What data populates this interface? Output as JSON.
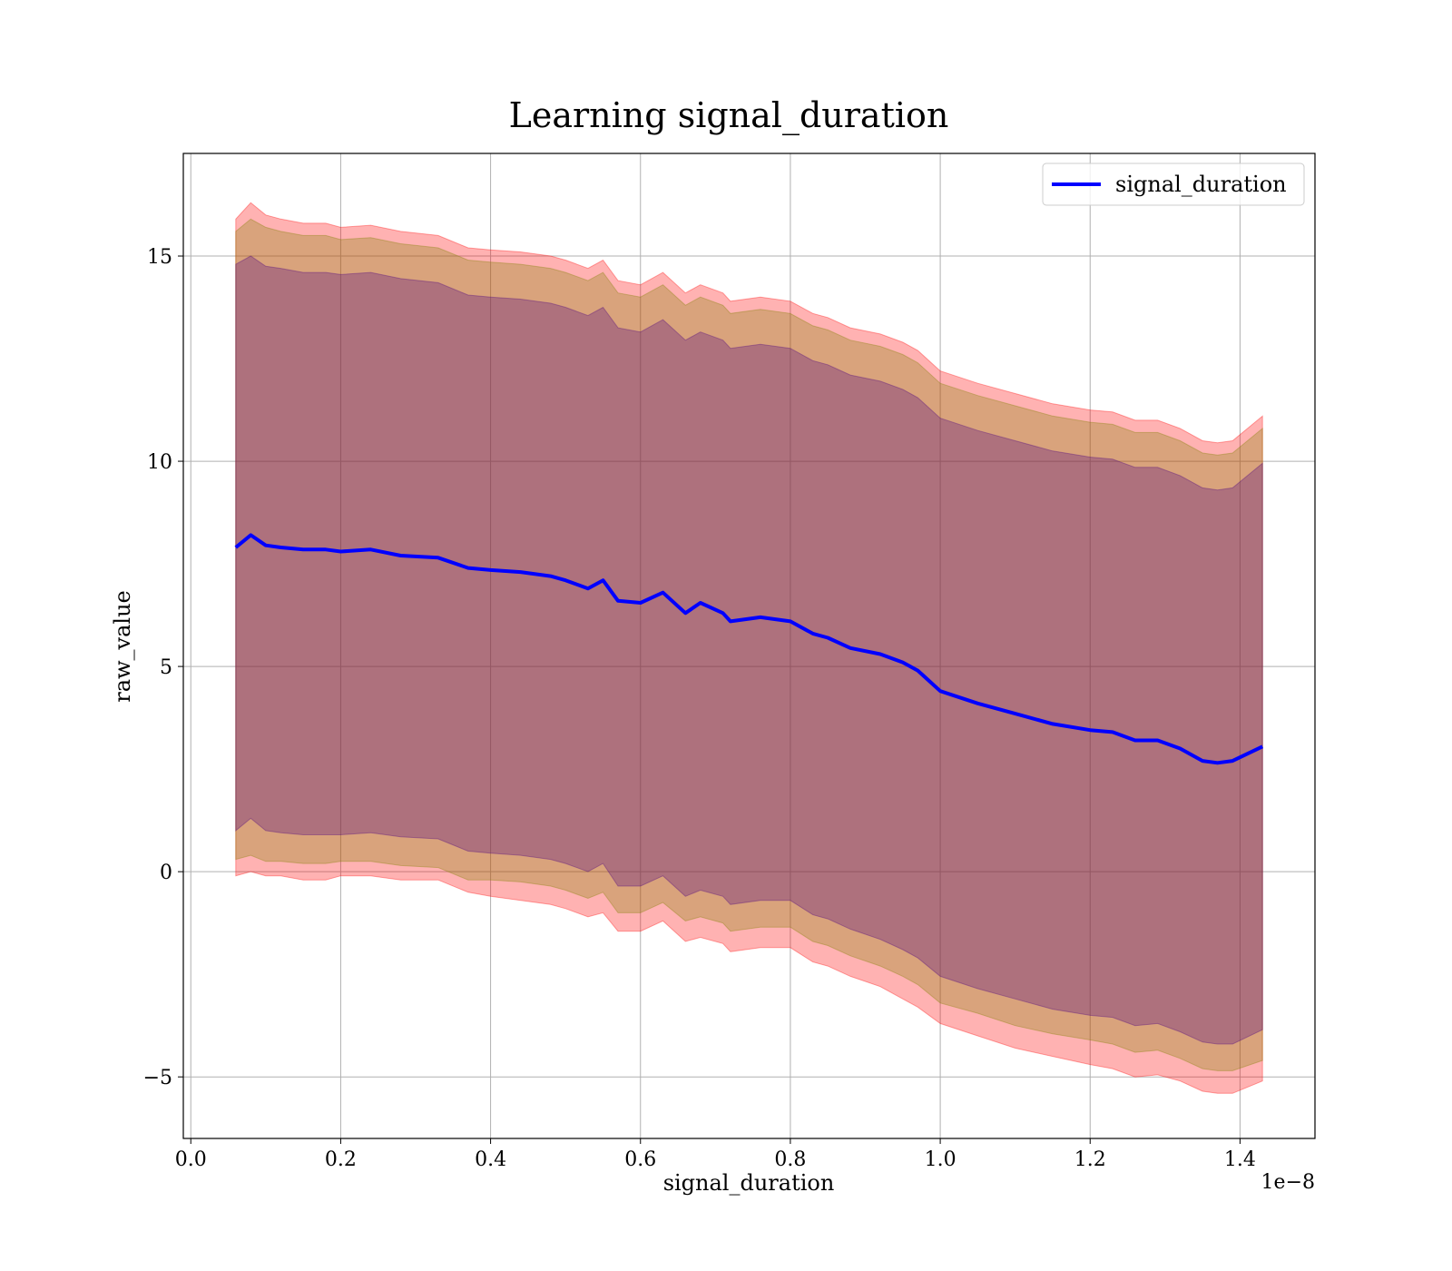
{
  "chart_data": {
    "type": "line",
    "title": "Learning signal_duration",
    "xlabel": "signal_duration",
    "ylabel": "raw_value",
    "x_offset_label": "1e−8",
    "xlim": [
      -0.01,
      1.5
    ],
    "ylim": [
      -6.5,
      17.5
    ],
    "x_ticks": [
      0.0,
      0.2,
      0.4,
      0.6,
      0.8,
      1.0,
      1.2,
      1.4
    ],
    "x_tick_labels": [
      "0.0",
      "0.2",
      "0.4",
      "0.6",
      "0.8",
      "1.0",
      "1.2",
      "1.4"
    ],
    "y_ticks": [
      -5,
      0,
      5,
      10,
      15
    ],
    "y_tick_labels": [
      "−5",
      "0",
      "5",
      "10",
      "15"
    ],
    "grid": true,
    "legend": {
      "position": "upper right",
      "entries": [
        "signal_duration"
      ]
    },
    "colors": {
      "line": "#0000ff",
      "band_outer": "#ff0000",
      "band_middle": "#808000",
      "band_inner": "#4b0082"
    },
    "band_opacity": {
      "outer": 0.3,
      "middle": 0.3,
      "inner": 0.3
    },
    "x": [
      0.06,
      0.08,
      0.1,
      0.12,
      0.15,
      0.18,
      0.2,
      0.24,
      0.28,
      0.33,
      0.37,
      0.4,
      0.44,
      0.48,
      0.5,
      0.53,
      0.55,
      0.57,
      0.6,
      0.63,
      0.66,
      0.68,
      0.71,
      0.72,
      0.76,
      0.8,
      0.83,
      0.85,
      0.88,
      0.92,
      0.95,
      0.97,
      1.0,
      1.05,
      1.1,
      1.15,
      1.2,
      1.23,
      1.26,
      1.29,
      1.32,
      1.35,
      1.37,
      1.39,
      1.43
    ],
    "series": [
      {
        "name": "signal_duration",
        "values": [
          7.9,
          8.2,
          7.95,
          7.9,
          7.85,
          7.85,
          7.8,
          7.85,
          7.7,
          7.65,
          7.4,
          7.35,
          7.3,
          7.2,
          7.1,
          6.9,
          7.1,
          6.6,
          6.55,
          6.8,
          6.3,
          6.55,
          6.3,
          6.1,
          6.2,
          6.1,
          5.8,
          5.7,
          5.45,
          5.3,
          5.1,
          4.9,
          4.4,
          4.1,
          3.85,
          3.6,
          3.45,
          3.4,
          3.2,
          3.2,
          3.0,
          2.7,
          2.65,
          2.7,
          3.05
        ]
      }
    ],
    "bands": [
      {
        "level": "outer",
        "upper": [
          15.9,
          16.3,
          16.0,
          15.9,
          15.8,
          15.8,
          15.7,
          15.75,
          15.6,
          15.5,
          15.2,
          15.15,
          15.1,
          15.0,
          14.9,
          14.7,
          14.9,
          14.4,
          14.3,
          14.6,
          14.1,
          14.3,
          14.1,
          13.9,
          14.0,
          13.9,
          13.6,
          13.5,
          13.25,
          13.1,
          12.9,
          12.7,
          12.2,
          11.9,
          11.65,
          11.4,
          11.25,
          11.2,
          11.0,
          11.0,
          10.8,
          10.5,
          10.45,
          10.5,
          11.1
        ],
        "lower": [
          -0.1,
          0.0,
          -0.1,
          -0.1,
          -0.2,
          -0.2,
          -0.1,
          -0.1,
          -0.2,
          -0.2,
          -0.5,
          -0.6,
          -0.7,
          -0.8,
          -0.9,
          -1.1,
          -1.0,
          -1.45,
          -1.45,
          -1.2,
          -1.7,
          -1.6,
          -1.75,
          -1.95,
          -1.85,
          -1.85,
          -2.2,
          -2.3,
          -2.55,
          -2.8,
          -3.1,
          -3.3,
          -3.7,
          -4.0,
          -4.3,
          -4.5,
          -4.7,
          -4.8,
          -5.0,
          -4.95,
          -5.1,
          -5.35,
          -5.4,
          -5.4,
          -5.1
        ]
      },
      {
        "level": "middle",
        "upper": [
          15.6,
          15.9,
          15.7,
          15.6,
          15.5,
          15.5,
          15.4,
          15.45,
          15.3,
          15.2,
          14.9,
          14.85,
          14.8,
          14.7,
          14.6,
          14.4,
          14.6,
          14.1,
          14.0,
          14.3,
          13.8,
          14.0,
          13.8,
          13.6,
          13.7,
          13.6,
          13.3,
          13.2,
          12.95,
          12.8,
          12.6,
          12.4,
          11.9,
          11.6,
          11.35,
          11.1,
          10.95,
          10.9,
          10.7,
          10.7,
          10.5,
          10.2,
          10.15,
          10.2,
          10.8
        ],
        "lower": [
          0.3,
          0.4,
          0.25,
          0.25,
          0.2,
          0.2,
          0.25,
          0.25,
          0.15,
          0.1,
          -0.2,
          -0.2,
          -0.25,
          -0.35,
          -0.45,
          -0.65,
          -0.5,
          -1.0,
          -1.0,
          -0.75,
          -1.2,
          -1.1,
          -1.25,
          -1.45,
          -1.35,
          -1.35,
          -1.7,
          -1.8,
          -2.05,
          -2.3,
          -2.55,
          -2.75,
          -3.2,
          -3.45,
          -3.75,
          -3.95,
          -4.1,
          -4.2,
          -4.4,
          -4.35,
          -4.55,
          -4.8,
          -4.85,
          -4.85,
          -4.6
        ]
      },
      {
        "level": "inner",
        "upper": [
          14.8,
          15.0,
          14.75,
          14.7,
          14.6,
          14.6,
          14.55,
          14.6,
          14.45,
          14.35,
          14.05,
          14.0,
          13.95,
          13.85,
          13.75,
          13.55,
          13.75,
          13.25,
          13.15,
          13.45,
          12.95,
          13.15,
          12.95,
          12.75,
          12.85,
          12.75,
          12.45,
          12.35,
          12.1,
          11.95,
          11.75,
          11.55,
          11.05,
          10.75,
          10.5,
          10.25,
          10.1,
          10.05,
          9.85,
          9.85,
          9.65,
          9.35,
          9.3,
          9.35,
          9.95
        ],
        "lower": [
          1.0,
          1.3,
          1.0,
          0.95,
          0.9,
          0.9,
          0.9,
          0.95,
          0.85,
          0.8,
          0.5,
          0.45,
          0.4,
          0.3,
          0.2,
          0.0,
          0.2,
          -0.35,
          -0.35,
          -0.1,
          -0.6,
          -0.45,
          -0.6,
          -0.8,
          -0.7,
          -0.7,
          -1.05,
          -1.15,
          -1.4,
          -1.65,
          -1.9,
          -2.1,
          -2.55,
          -2.85,
          -3.1,
          -3.35,
          -3.5,
          -3.55,
          -3.75,
          -3.7,
          -3.9,
          -4.15,
          -4.2,
          -4.2,
          -3.85
        ]
      }
    ]
  }
}
